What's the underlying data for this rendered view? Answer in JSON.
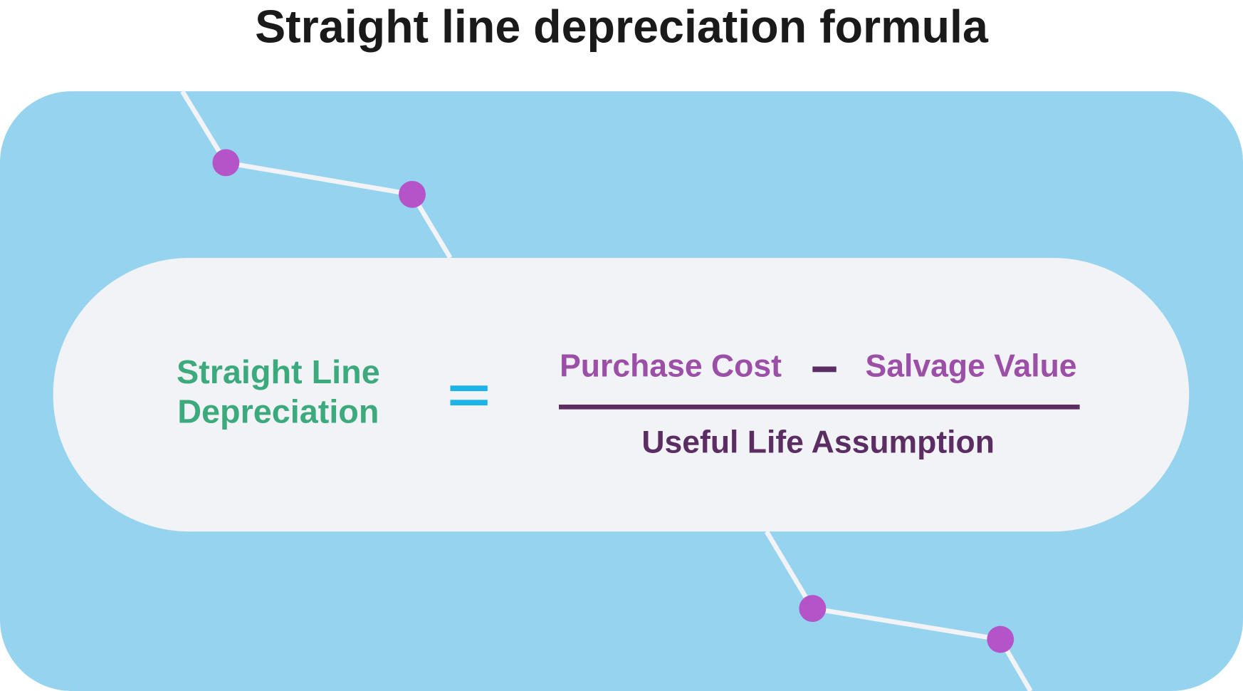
{
  "title": "Straight line depreciation formula",
  "formula": {
    "result": [
      "Straight Line",
      "Depreciation"
    ],
    "numerator": [
      "Purchase Cost",
      "Salvage Value"
    ],
    "denominator": "Useful Life Assumption"
  }
}
